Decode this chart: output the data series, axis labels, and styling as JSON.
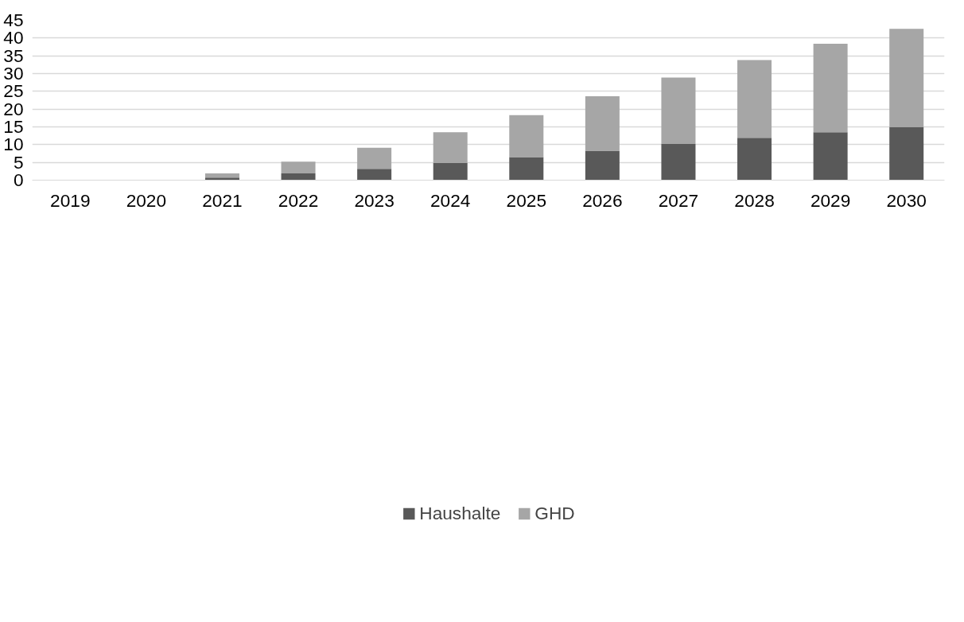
{
  "chart_data": {
    "type": "bar",
    "stacked": true,
    "categories": [
      "2019",
      "2020",
      "2021",
      "2022",
      "2023",
      "2024",
      "2025",
      "2026",
      "2027",
      "2028",
      "2029",
      "2030"
    ],
    "series": [
      {
        "name": "Haushalte",
        "color": "#595959",
        "values": [
          0,
          0,
          0.7,
          1.9,
          3.2,
          4.8,
          6.5,
          8.3,
          10.2,
          11.9,
          13.5,
          14.9
        ]
      },
      {
        "name": "GHD",
        "color": "#a6a6a6",
        "values": [
          0,
          0,
          1.2,
          3.3,
          5.9,
          8.7,
          11.8,
          15.3,
          18.7,
          21.9,
          24.9,
          27.7
        ]
      }
    ],
    "ylim": [
      0,
      45
    ],
    "yticks": [
      0,
      5,
      10,
      15,
      20,
      25,
      30,
      35,
      40,
      45
    ],
    "grid": "y",
    "legend": "bottom"
  }
}
